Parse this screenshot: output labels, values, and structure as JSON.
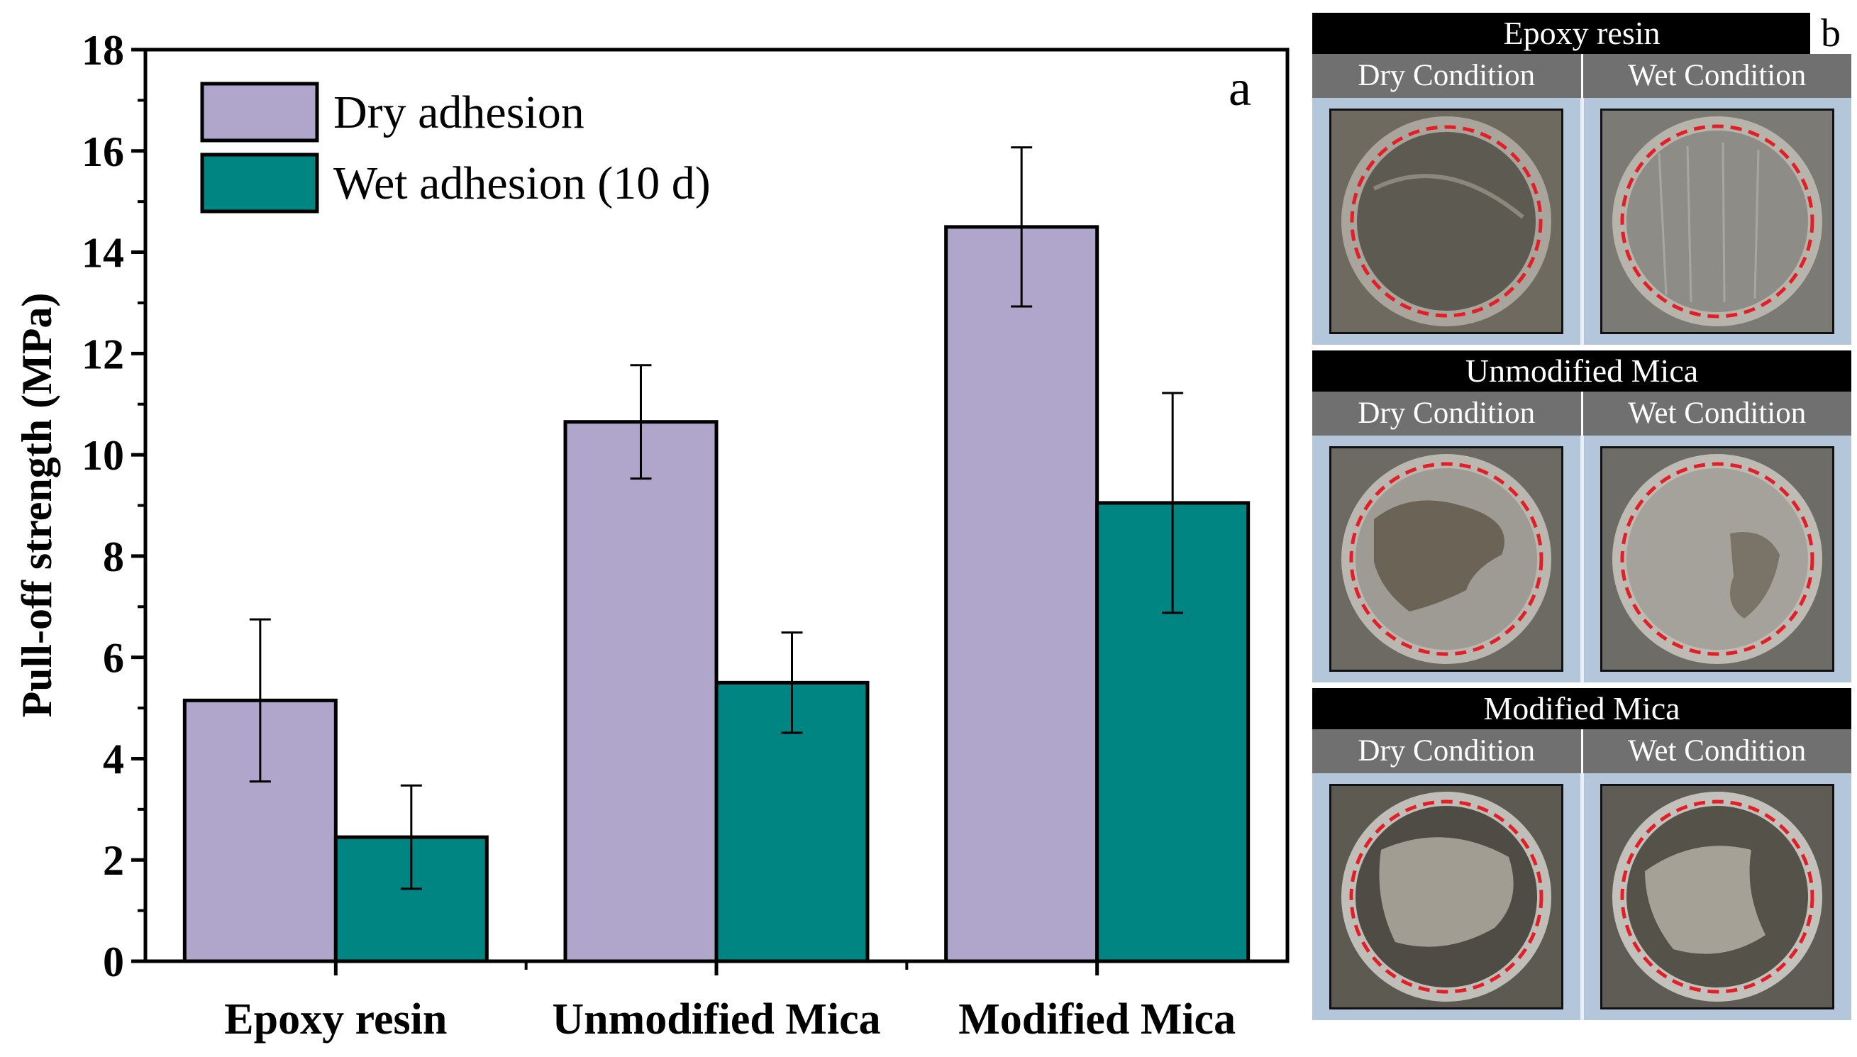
{
  "chart_data": {
    "type": "bar",
    "panel_label": "a",
    "ylabel": "Pull-off strength (MPa)",
    "xlabel": "",
    "ylim": [
      0,
      18
    ],
    "yticks": [
      0,
      2,
      4,
      6,
      8,
      10,
      12,
      14,
      16,
      18
    ],
    "categories": [
      "Epoxy resin",
      "Unmodified Mica",
      "Modified Mica"
    ],
    "series": [
      {
        "name": "Dry adhesion",
        "color": "#b0a6cc",
        "values": [
          5.15,
          10.65,
          14.5
        ],
        "errors": [
          1.6,
          1.12,
          1.57
        ]
      },
      {
        "name": "Wet adhesion (10 d)",
        "color": "#008582",
        "values": [
          2.45,
          5.5,
          9.05
        ],
        "errors": [
          1.02,
          0.99,
          2.17
        ]
      }
    ],
    "legend_position": "top-left"
  },
  "panel_b": {
    "label": "b",
    "groups": [
      {
        "title": "Epoxy resin",
        "dry_label": "Dry Condition",
        "wet_label": "Wet Condition"
      },
      {
        "title": "Unmodified Mica",
        "dry_label": "Dry Condition",
        "wet_label": "Wet Condition"
      },
      {
        "title": "Modified Mica",
        "dry_label": "Dry Condition",
        "wet_label": "Wet Condition"
      }
    ]
  }
}
